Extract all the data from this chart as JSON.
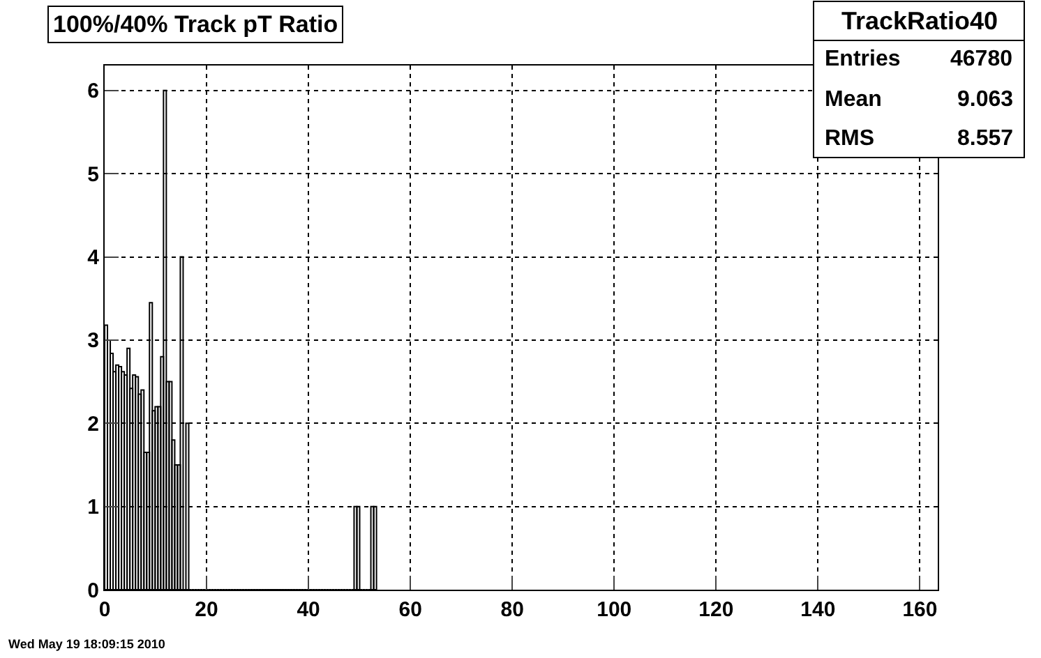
{
  "chart_data": {
    "type": "histogram",
    "title": "100%/40% Track pT Ratio",
    "bins": [
      0,
      0.55,
      1.1,
      1.65,
      2.2,
      2.75,
      3.3,
      3.85,
      4.4,
      4.95,
      5.5,
      6.05,
      6.6,
      7.15,
      7.7,
      8.25,
      8.8,
      9.35,
      9.9,
      10.45,
      11,
      11.55,
      12.1,
      12.65,
      13.2,
      13.75,
      14.3,
      14.85,
      15.4,
      15.95,
      16.5,
      17.05,
      17.6,
      18.15,
      18.7,
      19.25,
      19.8,
      20.35,
      20.9,
      21.45,
      22,
      22.55,
      23.1,
      23.65,
      24.2,
      24.75,
      25.3,
      25.85,
      26.4,
      26.95,
      27.5,
      28.05,
      28.6,
      29.15,
      29.7,
      30.25,
      30.8,
      31.35,
      31.9,
      32.45,
      33,
      33.55,
      34.1,
      34.65,
      35.2,
      35.75,
      36.3,
      36.85,
      37.4,
      37.95,
      38.5,
      39.05,
      39.6,
      40.15,
      40.7,
      41.25,
      41.8,
      42.35,
      42.9,
      43.45,
      44,
      44.55,
      45.1,
      45.65,
      46.2,
      46.75,
      47.3,
      47.85,
      48.4,
      48.95,
      49.5,
      50.05,
      50.6,
      51.15,
      51.7,
      52.25,
      52.8,
      53.35
    ],
    "values": [
      3.18,
      3.0,
      2.84,
      2.62,
      2.7,
      2.68,
      2.62,
      2.58,
      2.9,
      2.42,
      2.58,
      2.56,
      2.35,
      2.4,
      1.65,
      1.65,
      3.45,
      2.15,
      2.2,
      2.2,
      2.8,
      6.0,
      2.5,
      2.5,
      1.8,
      1.5,
      1.5,
      4.0,
      0,
      2.0,
      0,
      0,
      0,
      0,
      0,
      0,
      0,
      0,
      0,
      0,
      0,
      0,
      0,
      0,
      0,
      0,
      0,
      0,
      0,
      0,
      0,
      0,
      0,
      0,
      0,
      0,
      0,
      0,
      0,
      0,
      0,
      0,
      0,
      0,
      0,
      0,
      0,
      0,
      0,
      0,
      0,
      0,
      0,
      0,
      0,
      0,
      0,
      0,
      0,
      0,
      0,
      0,
      0,
      0,
      0,
      0,
      0,
      0,
      0,
      1,
      1,
      0,
      0,
      0,
      0,
      1,
      1
    ],
    "color": "#000000",
    "xlim": [
      0,
      163.5
    ],
    "xticks": [
      0,
      20,
      40,
      60,
      80,
      100,
      120,
      140,
      160
    ],
    "ylim": [
      0,
      6.3
    ],
    "yticks": [
      0,
      1,
      2,
      3,
      4,
      5,
      6
    ],
    "grid": true,
    "annotations": [
      "TrackRatio40",
      "Entries",
      "46780",
      "Mean",
      "9.063",
      "RMS",
      "8.557",
      "Wed May 19 18:09:15 2010"
    ]
  }
}
